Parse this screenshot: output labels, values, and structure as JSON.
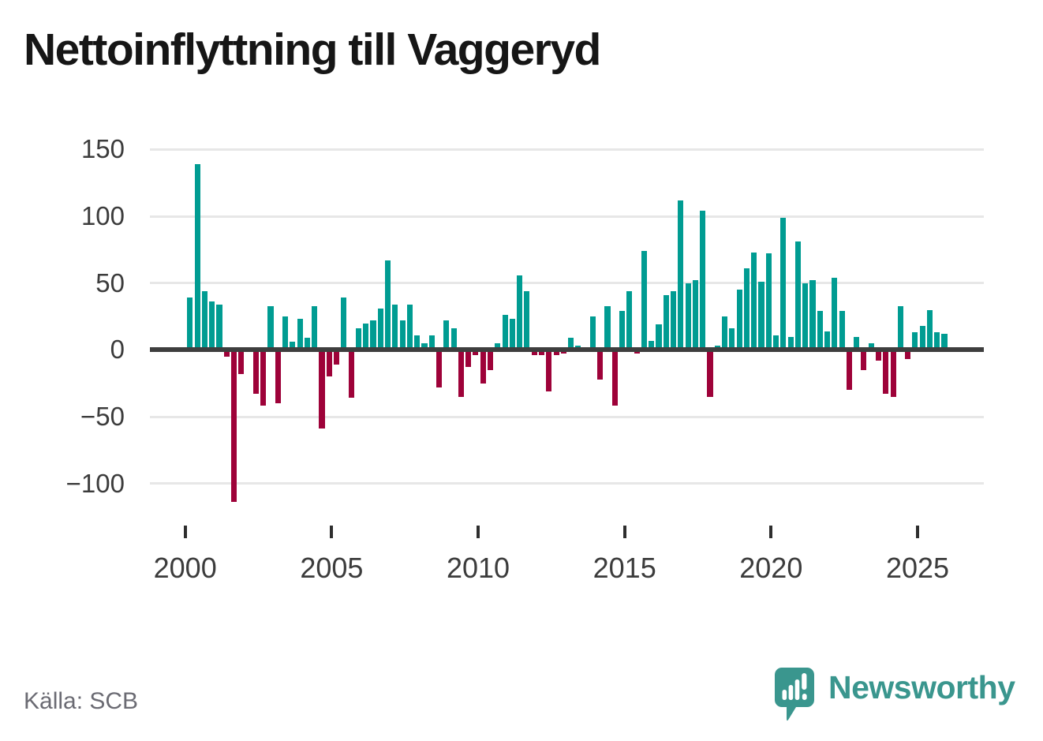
{
  "page": {
    "title": "Nettoinflyttning till Vaggeryd",
    "source": "Källa: SCB"
  },
  "branding": {
    "name": "Newsworthy",
    "icon": "newsworthy-speech-bubble-bar-chart-icon",
    "text_color": "#3a968e",
    "icon_color": "#3a968e"
  },
  "chart_data": {
    "type": "bar",
    "title": "Nettoinflyttning till Vaggeryd",
    "x_start": "2000Q1",
    "frequency": "quarterly",
    "values": [
      39,
      139,
      44,
      36,
      34,
      -5,
      -114,
      -18,
      0,
      -33,
      -42,
      33,
      -40,
      25,
      6,
      23,
      9,
      33,
      -59,
      -20,
      -11,
      39,
      -36,
      16,
      20,
      22,
      31,
      67,
      34,
      22,
      34,
      11,
      5,
      11,
      -28,
      22,
      16,
      -35,
      -13,
      -4,
      -25,
      -15,
      5,
      26,
      23,
      56,
      44,
      -4,
      -4,
      -31,
      -4,
      -3,
      9,
      3,
      0,
      25,
      -22,
      33,
      -42,
      29,
      44,
      -3,
      74,
      7,
      19,
      41,
      44,
      112,
      50,
      52,
      104,
      -35,
      3,
      25,
      16,
      45,
      61,
      73,
      51,
      72,
      11,
      99,
      10,
      81,
      50,
      52,
      29,
      14,
      54,
      29,
      -30,
      10,
      -15,
      5,
      -8,
      -33,
      -35,
      33,
      -7,
      13,
      18,
      30,
      13,
      12
    ],
    "x_tick_labels": [
      "2000",
      "2005",
      "2010",
      "2015",
      "2020",
      "2025"
    ],
    "x_tick_years": [
      2000,
      2005,
      2010,
      2015,
      2020,
      2025
    ],
    "y_ticks": [
      150,
      100,
      50,
      0,
      -50,
      -100
    ],
    "y_tick_labels": [
      "150",
      "100",
      "50",
      "0",
      "−50",
      "−100"
    ],
    "ylim": [
      -125,
      165
    ],
    "xlabel": "",
    "ylabel": "",
    "grid": true,
    "legend_position": "none",
    "positive_color": "#009c92",
    "negative_color": "#9e0239",
    "axis_color": "#3e3e3e",
    "grid_color": "#e7e7e7",
    "tick_label_color": "#3c3c3c"
  }
}
